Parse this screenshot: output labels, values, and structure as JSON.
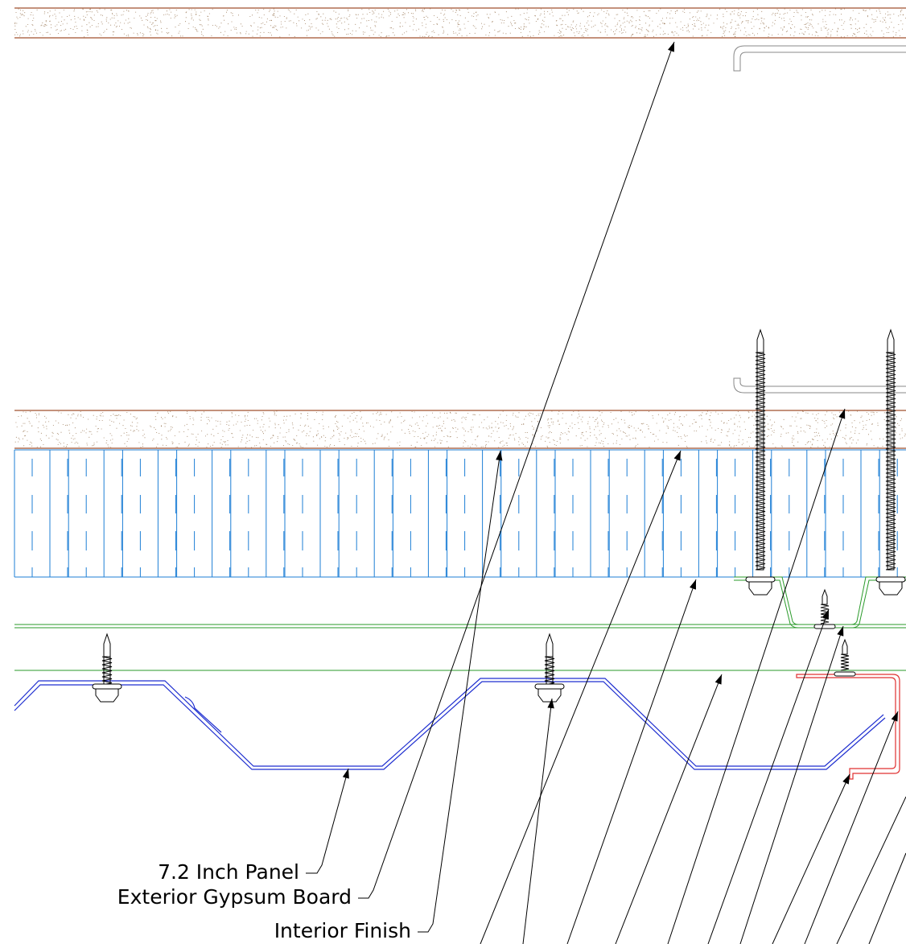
{
  "labels": [
    "7.2 Inch Panel",
    "Exterior Gypsum Board",
    "Interior Finish"
  ]
}
